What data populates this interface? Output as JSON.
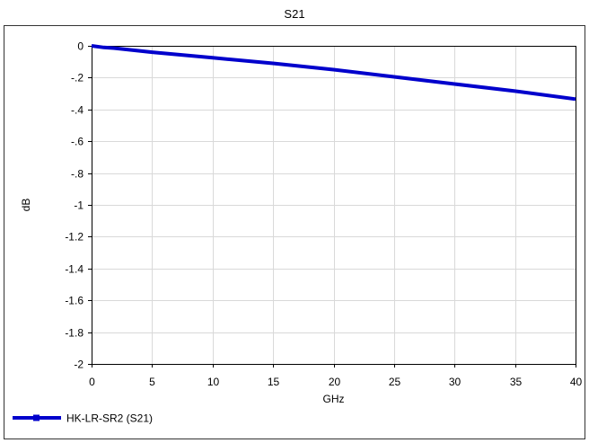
{
  "chart_data": {
    "type": "line",
    "title": "S21",
    "xlabel": "GHz",
    "ylabel": "dB",
    "xlim": [
      0,
      40
    ],
    "ylim": [
      -2,
      0
    ],
    "xticks": [
      0,
      5,
      10,
      15,
      20,
      25,
      30,
      35,
      40
    ],
    "yticks": [
      0,
      -0.2,
      -0.4,
      -0.6,
      -0.8,
      -1,
      -1.2,
      -1.4,
      -1.6,
      -1.8,
      -2
    ],
    "xtick_labels": [
      "0",
      "5",
      "10",
      "15",
      "20",
      "25",
      "30",
      "35",
      "40"
    ],
    "ytick_labels": [
      "0",
      "-.2",
      "-.4",
      "-.6",
      "-.8",
      "-1",
      "-1.2",
      "-1.4",
      "-1.6",
      "-1.8",
      "-2"
    ],
    "grid": true,
    "legend_position": "bottom-left",
    "series": [
      {
        "name": "HK-LR-SR2 (S21)",
        "color": "#0000cc",
        "x": [
          0,
          1,
          2,
          5,
          10,
          15,
          20,
          25,
          30,
          35,
          40
        ],
        "y": [
          0,
          -0.01,
          -0.015,
          -0.04,
          -0.075,
          -0.11,
          -0.15,
          -0.195,
          -0.24,
          -0.285,
          -0.335
        ]
      }
    ]
  }
}
